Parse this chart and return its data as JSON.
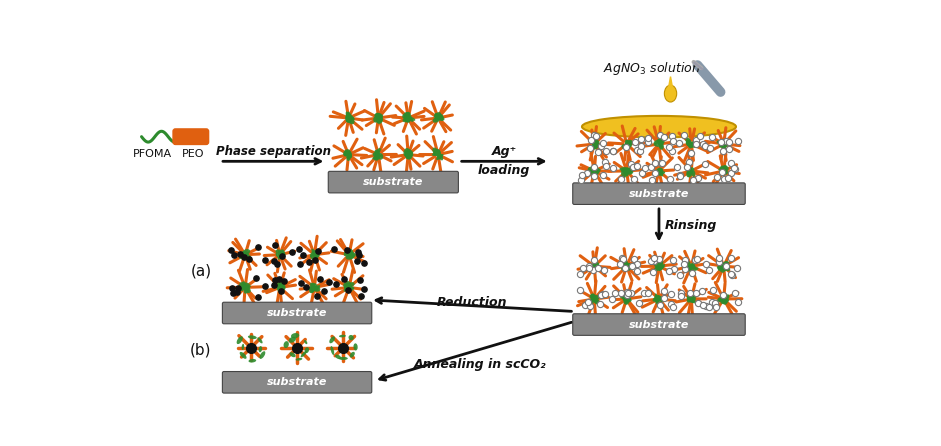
{
  "bg_color": "#ffffff",
  "green_color": "#2d8b2d",
  "orange_color": "#e06010",
  "substrate_color": "#888888",
  "gold_color": "#f0c020",
  "black_dot_color": "#111111",
  "arrow_color": "#111111",
  "syringe_color": "#8899aa",
  "phase_sep_label": "Phase separation",
  "ag_loading_line1": "Ag⁺",
  "ag_loading_line2": "loading",
  "rinsing_label": "Rinsing",
  "reduction_label": "Reduction",
  "annealing_label": "Annealing in scCO₂",
  "agno3_label": "AgNO₃ solution",
  "pfoma_label": "PFOMA",
  "peo_label": "PEO",
  "label_a": "(a)",
  "label_b": "(b)",
  "substrate_label": "substrate"
}
